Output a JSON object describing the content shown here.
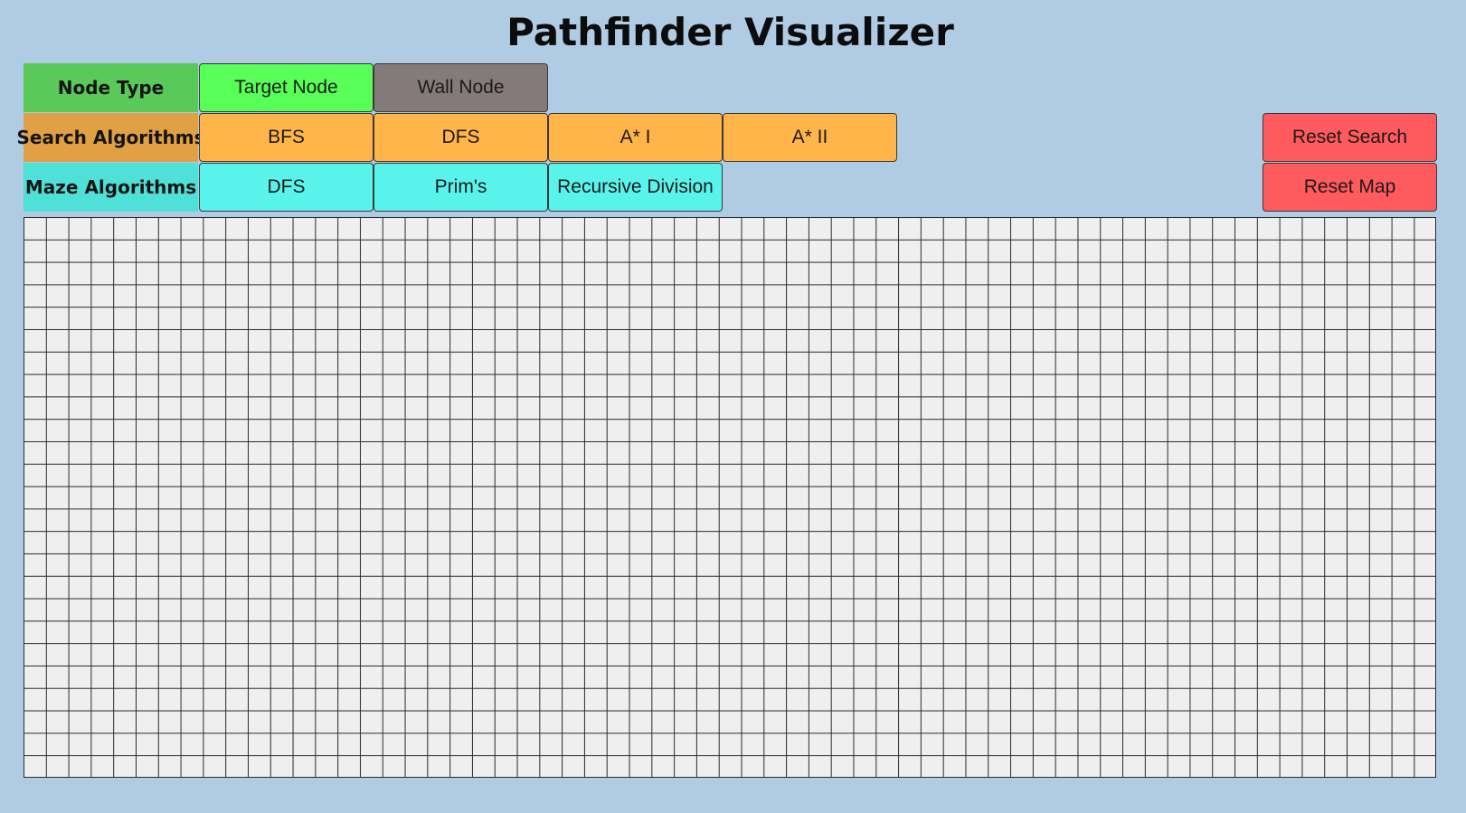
{
  "header": {
    "title": "Pathfinder Visualizer"
  },
  "node_type": {
    "label": "Node Type",
    "buttons": [
      "Target Node",
      "Wall Node"
    ]
  },
  "search_algorithms": {
    "label": "Search Algorithms",
    "buttons": [
      "BFS",
      "DFS",
      "A* I",
      "A* II"
    ]
  },
  "maze_algorithms": {
    "label": "Maze Algorithms",
    "buttons": [
      "DFS",
      "Prim's",
      "Recursive Division"
    ]
  },
  "actions": {
    "reset_search": "Reset Search",
    "reset_map": "Reset Map"
  },
  "grid": {
    "columns": 63,
    "rows": 25,
    "cell_color": "#efefef",
    "line_color": "#2a2a2a"
  },
  "colors": {
    "background": "#afcce4",
    "target_node": "#57ff57",
    "wall_node": "#857a7a",
    "search_button": "#ffb54a",
    "maze_button": "#58f4ec",
    "reset_button": "#ff5a5d"
  }
}
